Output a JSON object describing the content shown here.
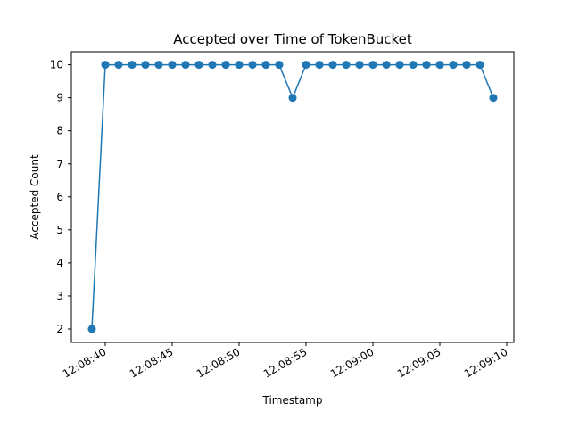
{
  "chart_data": {
    "type": "line",
    "title": "Accepted over Time of TokenBucket",
    "xlabel": "Timestamp",
    "ylabel": "Accepted Count",
    "x_ticks": [
      "12:08:40",
      "12:08:45",
      "12:08:50",
      "12:08:55",
      "12:09:00",
      "12:09:05",
      "12:09:10"
    ],
    "y_ticks": [
      "2",
      "3",
      "4",
      "5",
      "6",
      "7",
      "8",
      "9",
      "10"
    ],
    "grid": false,
    "legend": "none",
    "color": "#1f77b4",
    "series": [
      {
        "x": [
          "12:08:39",
          "12:08:40",
          "12:08:41",
          "12:08:42",
          "12:08:43",
          "12:08:44",
          "12:08:45",
          "12:08:46",
          "12:08:47",
          "12:08:48",
          "12:08:49",
          "12:08:50",
          "12:08:51",
          "12:08:52",
          "12:08:53",
          "12:08:54",
          "12:08:55",
          "12:08:56",
          "12:08:57",
          "12:08:58",
          "12:08:59",
          "12:09:00",
          "12:09:01",
          "12:09:02",
          "12:09:03",
          "12:09:04",
          "12:09:05",
          "12:09:06",
          "12:09:07",
          "12:09:08",
          "12:09:09"
        ],
        "values": [
          2,
          10,
          10,
          10,
          10,
          10,
          10,
          10,
          10,
          10,
          10,
          10,
          10,
          10,
          10,
          9,
          10,
          10,
          10,
          10,
          10,
          10,
          10,
          10,
          10,
          10,
          10,
          10,
          10,
          10,
          9
        ]
      }
    ]
  }
}
